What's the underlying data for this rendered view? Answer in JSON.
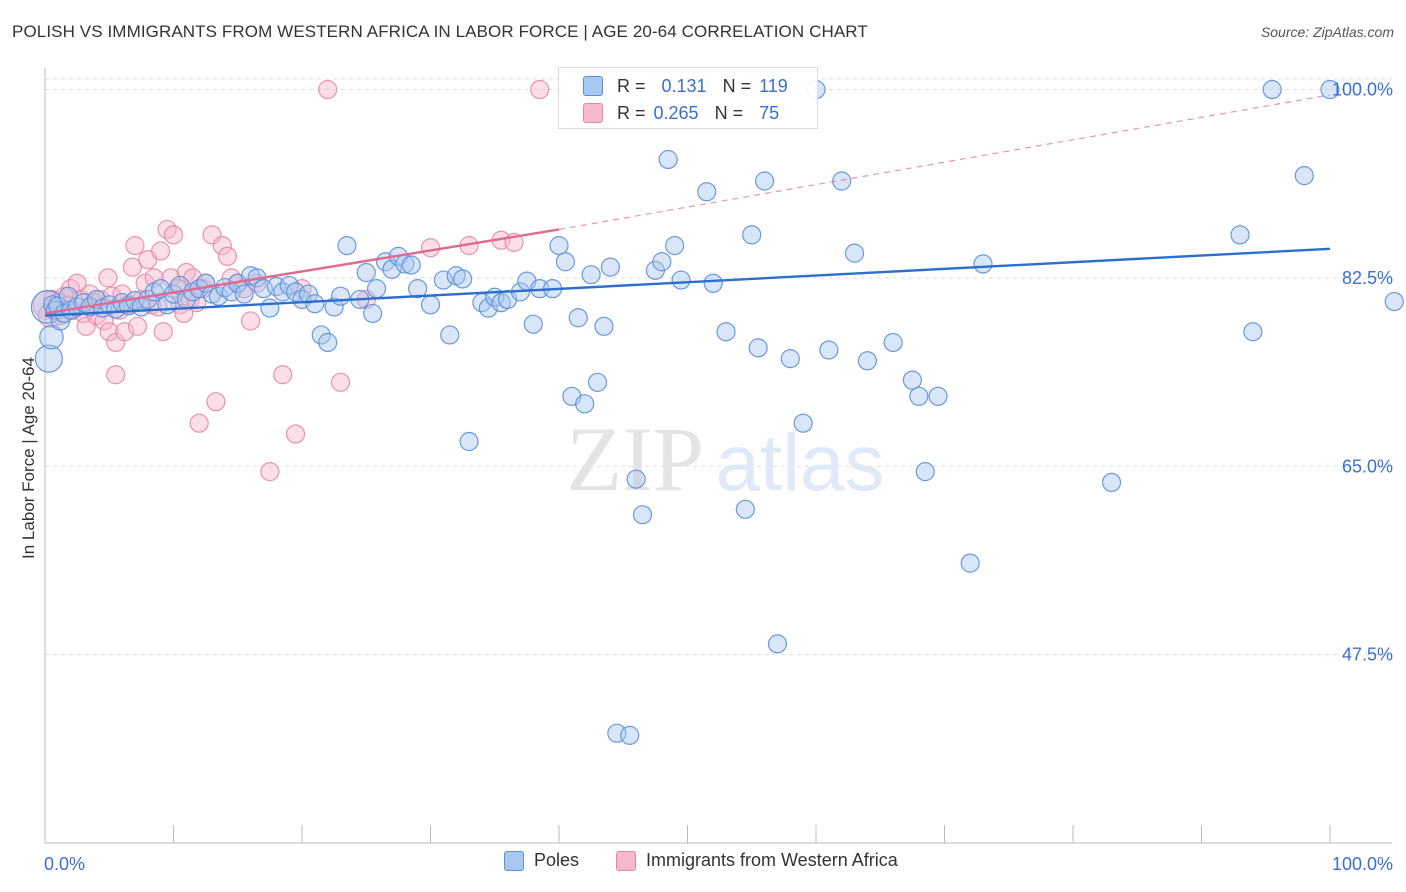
{
  "title": "POLISH VS IMMIGRANTS FROM WESTERN AFRICA IN LABOR FORCE | AGE 20-64 CORRELATION CHART",
  "source": "Source: ZipAtlas.com",
  "watermark": {
    "zip": "ZIP",
    "atlas": "atlas"
  },
  "colors": {
    "poles_fill": "#a9c8f0",
    "poles_stroke": "#5b8fd9",
    "poles_line": "#2c6fcf",
    "wa_fill": "#f7b9cc",
    "wa_stroke": "#e887a6",
    "wa_line": "#e06a92",
    "tick_label": "#3a6fd0",
    "grid": "#dddddd"
  },
  "stats": {
    "r_label": "R =",
    "n_label": "N =",
    "poles": {
      "r": "0.131",
      "n": "119"
    },
    "wa": {
      "r": "0.265",
      "n": "75"
    }
  },
  "legend": {
    "poles": "Poles",
    "wa": "Immigrants from Western Africa"
  },
  "chart_data": {
    "type": "scatter",
    "title": "POLISH VS IMMIGRANTS FROM WESTERN AFRICA IN LABOR FORCE | AGE 20-64 CORRELATION CHART",
    "ylabel": "In Labor Force | Age 20-64",
    "xlabel": "",
    "xlim": [
      0,
      100
    ],
    "ylim": [
      30,
      102
    ],
    "y_ticks": [
      47.5,
      65.0,
      82.5,
      100.0
    ],
    "y_tick_labels": [
      "47.5%",
      "65.0%",
      "82.5%",
      "100.0%"
    ],
    "x_tick_labels": {
      "min": "0.0%",
      "max": "100.0%"
    },
    "grid": "horizontal dashed",
    "legend_position": "bottom-center",
    "series": [
      {
        "name": "Poles",
        "trend": {
          "x": [
            0,
            100
          ],
          "y": [
            79.0,
            85.2
          ]
        },
        "points": [
          [
            0.2,
            79.8,
            1.8
          ],
          [
            0.3,
            75.0,
            1.5
          ],
          [
            0.5,
            77.0,
            1.3
          ],
          [
            0.6,
            80.0,
            1.0
          ],
          [
            0.8,
            79.5,
            1.0
          ],
          [
            1.0,
            79.9,
            1.0
          ],
          [
            1.2,
            78.5,
            1.0
          ],
          [
            1.5,
            79.2,
            1.0
          ],
          [
            1.8,
            80.8,
            1.0
          ],
          [
            2.0,
            79.5,
            1.0
          ],
          [
            2.5,
            79.8,
            1.0
          ],
          [
            3.0,
            80.2,
            1.0
          ],
          [
            3.5,
            79.8,
            1.0
          ],
          [
            4.0,
            80.5,
            1.0
          ],
          [
            4.5,
            79.7,
            1.0
          ],
          [
            5.0,
            80.0,
            1.0
          ],
          [
            5.5,
            79.6,
            1.0
          ],
          [
            6.0,
            80.2,
            1.0
          ],
          [
            6.5,
            79.9,
            1.0
          ],
          [
            7.0,
            80.4,
            1.0
          ],
          [
            7.5,
            79.8,
            1.0
          ],
          [
            8.0,
            80.5,
            1.0
          ],
          [
            8.5,
            81.2,
            1.0
          ],
          [
            9.0,
            81.5,
            1.0
          ],
          [
            9.5,
            80.0,
            1.0
          ],
          [
            10.0,
            81.0,
            1.0
          ],
          [
            10.5,
            81.8,
            1.0
          ],
          [
            11.0,
            80.5,
            1.0
          ],
          [
            11.5,
            81.2,
            1.0
          ],
          [
            12.0,
            81.5,
            1.0
          ],
          [
            12.5,
            82.0,
            1.0
          ],
          [
            13.0,
            81.0,
            1.0
          ],
          [
            13.5,
            80.8,
            1.0
          ],
          [
            14.0,
            81.6,
            1.0
          ],
          [
            14.5,
            81.2,
            1.0
          ],
          [
            15.0,
            82.0,
            1.0
          ],
          [
            15.5,
            81.0,
            1.0
          ],
          [
            16.0,
            82.7,
            1.0
          ],
          [
            16.5,
            82.5,
            1.0
          ],
          [
            17.0,
            81.5,
            1.0
          ],
          [
            17.5,
            79.7,
            1.0
          ],
          [
            18.0,
            81.7,
            1.0
          ],
          [
            18.5,
            81.2,
            1.0
          ],
          [
            19.0,
            81.8,
            1.0
          ],
          [
            19.5,
            81.2,
            1.0
          ],
          [
            20.0,
            80.5,
            1.0
          ],
          [
            20.5,
            81.0,
            1.0
          ],
          [
            21.0,
            80.1,
            1.0
          ],
          [
            21.5,
            77.2,
            1.0
          ],
          [
            22.0,
            76.5,
            1.0
          ],
          [
            22.5,
            79.8,
            1.0
          ],
          [
            23.0,
            80.8,
            1.0
          ],
          [
            23.5,
            85.5,
            1.0
          ],
          [
            24.5,
            80.5,
            1.0
          ],
          [
            25.0,
            83.0,
            1.0
          ],
          [
            25.5,
            79.2,
            1.0
          ],
          [
            25.8,
            81.5,
            1.0
          ],
          [
            26.5,
            84.0,
            1.0
          ],
          [
            27.0,
            83.3,
            1.0
          ],
          [
            27.5,
            84.5,
            1.0
          ],
          [
            28.0,
            83.8,
            1.0
          ],
          [
            28.5,
            83.7,
            1.0
          ],
          [
            29.0,
            81.5,
            1.0
          ],
          [
            30.0,
            80.0,
            1.0
          ],
          [
            31.0,
            82.3,
            1.0
          ],
          [
            31.5,
            77.2,
            1.0
          ],
          [
            32.0,
            82.7,
            1.0
          ],
          [
            32.5,
            82.4,
            1.0
          ],
          [
            33.0,
            67.3,
            1.0
          ],
          [
            34.0,
            80.2,
            1.0
          ],
          [
            34.5,
            79.7,
            1.0
          ],
          [
            35.0,
            80.7,
            1.0
          ],
          [
            35.5,
            80.2,
            1.0
          ],
          [
            36.0,
            80.5,
            1.0
          ],
          [
            37.0,
            81.2,
            1.0
          ],
          [
            37.5,
            82.2,
            1.0
          ],
          [
            38.0,
            78.2,
            1.0
          ],
          [
            38.5,
            81.5,
            1.0
          ],
          [
            39.5,
            81.5,
            1.0
          ],
          [
            40.0,
            85.5,
            1.0
          ],
          [
            40.5,
            84.0,
            1.0
          ],
          [
            41.0,
            71.5,
            1.0
          ],
          [
            41.5,
            78.8,
            1.0
          ],
          [
            42.0,
            70.8,
            1.0
          ],
          [
            42.5,
            82.8,
            1.0
          ],
          [
            43.0,
            72.8,
            1.0
          ],
          [
            43.5,
            78.0,
            1.0
          ],
          [
            44.0,
            83.5,
            1.0
          ],
          [
            44.5,
            40.2,
            1.0
          ],
          [
            45.5,
            40.0,
            1.0
          ],
          [
            46.0,
            63.8,
            1.0
          ],
          [
            46.5,
            60.5,
            1.0
          ],
          [
            47.5,
            83.2,
            1.0
          ],
          [
            48.0,
            84.0,
            1.0
          ],
          [
            48.5,
            93.5,
            1.0
          ],
          [
            49.0,
            85.5,
            1.0
          ],
          [
            49.5,
            82.3,
            1.0
          ],
          [
            51.0,
            100.2,
            1.0
          ],
          [
            51.5,
            90.5,
            1.0
          ],
          [
            52.0,
            82.0,
            1.0
          ],
          [
            53.0,
            77.5,
            1.0
          ],
          [
            54.5,
            61.0,
            1.0
          ],
          [
            55.0,
            86.5,
            1.0
          ],
          [
            55.5,
            76.0,
            1.0
          ],
          [
            56.0,
            91.5,
            1.0
          ],
          [
            57.0,
            48.5,
            1.0
          ],
          [
            58.0,
            75.0,
            1.0
          ],
          [
            59.0,
            69.0,
            1.0
          ],
          [
            60.0,
            100.0,
            1.0
          ],
          [
            61.0,
            75.8,
            1.0
          ],
          [
            62.0,
            91.5,
            1.0
          ],
          [
            63.0,
            84.8,
            1.0
          ],
          [
            64.0,
            74.8,
            1.0
          ],
          [
            66.0,
            76.5,
            1.0
          ],
          [
            67.5,
            73.0,
            1.0
          ],
          [
            68.0,
            71.5,
            1.0
          ],
          [
            68.5,
            64.5,
            1.0
          ],
          [
            69.5,
            71.5,
            1.0
          ],
          [
            72.0,
            56.0,
            1.0
          ],
          [
            73.0,
            83.8,
            1.0
          ],
          [
            83.0,
            63.5,
            1.0
          ],
          [
            93.0,
            86.5,
            1.0
          ],
          [
            94.0,
            77.5,
            1.0
          ],
          [
            95.5,
            100.0,
            1.0
          ],
          [
            100.0,
            100.0,
            1.0
          ],
          [
            98.0,
            92.0,
            1.0
          ],
          [
            105.0,
            80.3,
            1.0
          ]
        ]
      },
      {
        "name": "Immigrants from Western Africa",
        "trend": {
          "x": [
            0,
            40
          ],
          "y": [
            79.2,
            87.0
          ]
        },
        "trend_dashed": {
          "x": [
            40,
            100
          ],
          "y": [
            87.0,
            99.5
          ]
        },
        "points": [
          [
            0.2,
            80.0,
            1.6
          ],
          [
            0.4,
            79.0,
            1.3
          ],
          [
            0.6,
            80.5,
            1.0
          ],
          [
            0.8,
            79.5,
            1.0
          ],
          [
            1.0,
            80.2,
            1.0
          ],
          [
            1.2,
            79.0,
            1.0
          ],
          [
            1.5,
            80.8,
            1.0
          ],
          [
            1.8,
            80.0,
            1.0
          ],
          [
            2.0,
            81.5,
            1.0
          ],
          [
            2.2,
            79.5,
            1.0
          ],
          [
            2.5,
            82.0,
            1.0
          ],
          [
            2.8,
            80.5,
            1.0
          ],
          [
            3.0,
            79.2,
            1.0
          ],
          [
            3.2,
            78.0,
            1.0
          ],
          [
            3.5,
            81.0,
            1.0
          ],
          [
            3.8,
            80.2,
            1.0
          ],
          [
            4.0,
            79.0,
            1.0
          ],
          [
            4.3,
            80.5,
            1.0
          ],
          [
            4.6,
            78.5,
            1.0
          ],
          [
            4.9,
            82.5,
            1.0
          ],
          [
            5.0,
            77.5,
            1.0
          ],
          [
            5.2,
            80.8,
            1.0
          ],
          [
            5.5,
            76.5,
            1.0
          ],
          [
            5.5,
            73.5,
            1.0
          ],
          [
            5.8,
            79.5,
            1.0
          ],
          [
            6.0,
            81.0,
            1.0
          ],
          [
            6.2,
            77.5,
            1.0
          ],
          [
            6.5,
            80.0,
            1.0
          ],
          [
            6.8,
            83.5,
            1.0
          ],
          [
            7.0,
            85.5,
            1.0
          ],
          [
            7.2,
            78.0,
            1.0
          ],
          [
            7.5,
            80.5,
            1.0
          ],
          [
            7.8,
            82.0,
            1.0
          ],
          [
            8.0,
            84.2,
            1.0
          ],
          [
            8.3,
            80.0,
            1.0
          ],
          [
            8.5,
            82.5,
            1.0
          ],
          [
            8.8,
            79.8,
            1.0
          ],
          [
            9.0,
            85.0,
            1.0
          ],
          [
            9.2,
            77.5,
            1.0
          ],
          [
            9.5,
            87.0,
            1.0
          ],
          [
            9.8,
            82.5,
            1.0
          ],
          [
            10.0,
            86.5,
            1.0
          ],
          [
            10.3,
            81.5,
            1.0
          ],
          [
            10.5,
            80.0,
            1.0
          ],
          [
            10.8,
            79.2,
            1.0
          ],
          [
            11.0,
            83.0,
            1.0
          ],
          [
            11.3,
            80.5,
            1.0
          ],
          [
            11.5,
            82.5,
            1.0
          ],
          [
            11.8,
            80.2,
            1.0
          ],
          [
            12.0,
            69.0,
            1.0
          ],
          [
            12.3,
            81.5,
            1.0
          ],
          [
            12.5,
            82.0,
            1.0
          ],
          [
            13.0,
            86.5,
            1.0
          ],
          [
            13.3,
            71.0,
            1.0
          ],
          [
            13.8,
            85.5,
            1.0
          ],
          [
            14.2,
            84.5,
            1.0
          ],
          [
            14.5,
            82.5,
            1.0
          ],
          [
            15.0,
            82.0,
            1.0
          ],
          [
            15.5,
            81.5,
            1.0
          ],
          [
            16.0,
            78.5,
            1.0
          ],
          [
            16.5,
            82.0,
            1.0
          ],
          [
            17.5,
            64.5,
            1.0
          ],
          [
            18.5,
            73.5,
            1.0
          ],
          [
            19.5,
            68.0,
            1.0
          ],
          [
            20.0,
            81.5,
            1.0
          ],
          [
            22.0,
            100.0,
            1.0
          ],
          [
            23.0,
            72.8,
            1.0
          ],
          [
            25.0,
            80.5,
            1.0
          ],
          [
            30.0,
            85.3,
            1.0
          ],
          [
            33.0,
            85.5,
            1.0
          ],
          [
            35.5,
            86.0,
            1.0
          ],
          [
            36.5,
            85.8,
            1.0
          ],
          [
            38.5,
            100.0,
            1.0
          ]
        ]
      }
    ]
  }
}
